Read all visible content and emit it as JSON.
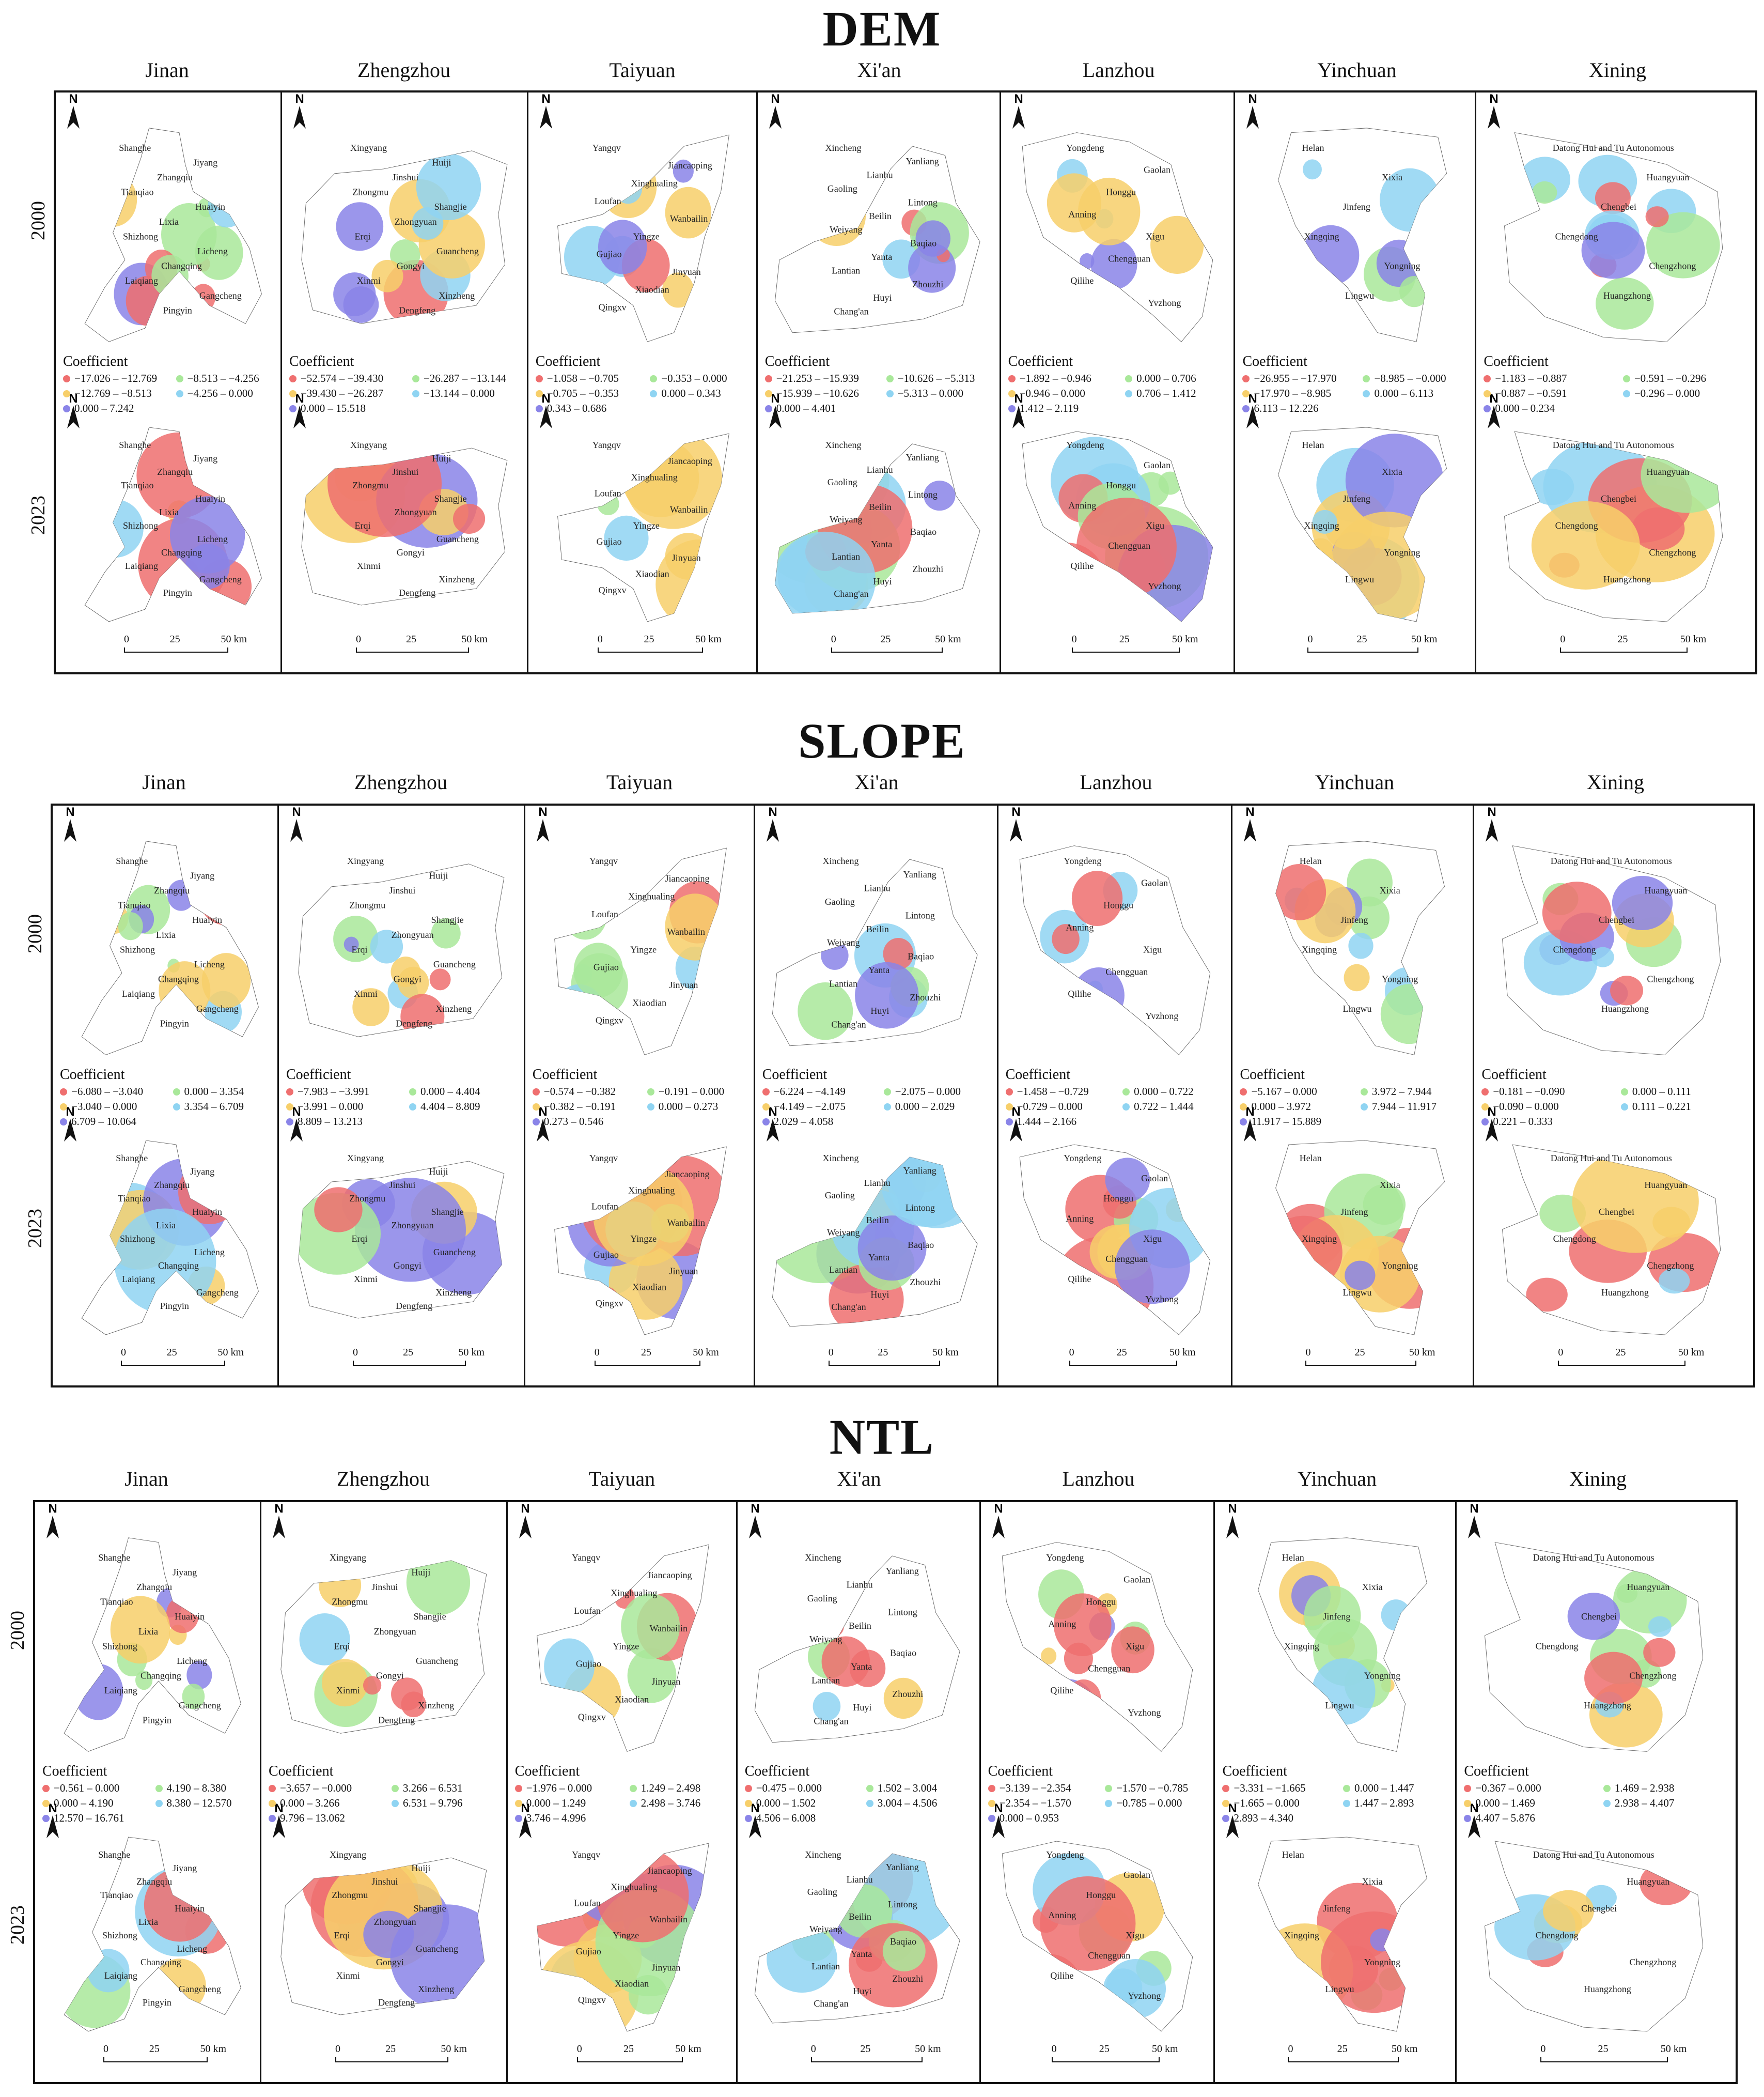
{
  "sections": [
    {
      "title": "DEM",
      "legends": [
        [
          "−17.026 – −12.769",
          "−12.769 – −8.513",
          "−8.513 – −4.256",
          "−4.256 – 0.000",
          "0.000 – 7.242"
        ],
        [
          "−52.574 – −39.430",
          "−39.430 – −26.287",
          "−26.287 – −13.144",
          "−13.144 – 0.000",
          "0.000 – 15.518"
        ],
        [
          "−1.058 – −0.705",
          "−0.705 – −0.353",
          "−0.353 – 0.000",
          "0.000 – 0.343",
          "0.343 – 0.686"
        ],
        [
          "−21.253 – −15.939",
          "−15.939 – −10.626",
          "−10.626 – −5.313",
          "−5.313 – 0.000",
          "0.000 – 4.401"
        ],
        [
          "−1.892 – −0.946",
          "−0.946 – 0.000",
          "0.000 – 0.706",
          "0.706 – 1.412",
          "1.412 – 2.119"
        ],
        [
          "−26.955 – −17.970",
          "−17.970 – −8.985",
          "−8.985 – −0.000",
          "0.000 – 6.113",
          "6.113 – 12.226"
        ],
        [
          "−1.183 – −0.887",
          "−0.887 – −0.591",
          "−0.591 – −0.296",
          "−0.296 – 0.000",
          "0.000 – 0.234"
        ]
      ]
    },
    {
      "title": "SLOPE",
      "legends": [
        [
          "−6.080 – −3.040",
          "−3.040 – 0.000",
          "0.000 – 3.354",
          "3.354 – 6.709",
          "6.709 – 10.064"
        ],
        [
          "−7.983 – −3.991",
          "−3.991 – 0.000",
          "0.000 – 4.404",
          "4.404 – 8.809",
          "8.809 – 13.213"
        ],
        [
          "−0.574 – −0.382",
          "−0.382 – −0.191",
          "−0.191 – 0.000",
          "0.000 – 0.273",
          "0.273 – 0.546"
        ],
        [
          "−6.224 – −4.149",
          "−4.149 – −2.075",
          "−2.075 – 0.000",
          "0.000 – 2.029",
          "2.029 – 4.058"
        ],
        [
          "−1.458 – −0.729",
          "−0.729 – 0.000",
          "0.000 – 0.722",
          "0.722 – 1.444",
          "1.444 – 2.166"
        ],
        [
          "−5.167 – 0.000",
          "0.000 – 3.972",
          "3.972 – 7.944",
          "7.944 – 11.917",
          "11.917 – 15.889"
        ],
        [
          "−0.181 – −0.090",
          "−0.090 – 0.000",
          "0.000 – 0.111",
          "0.111 – 0.221",
          "0.221 – 0.333"
        ]
      ]
    },
    {
      "title": "NTL",
      "legends": [
        [
          "−0.561 – 0.000",
          "0.000 – 4.190",
          "4.190 – 8.380",
          "8.380 – 12.570",
          "12.570 – 16.761"
        ],
        [
          "−3.657 – −0.000",
          "0.000 – 3.266",
          "3.266 – 6.531",
          "6.531 – 9.796",
          "9.796 – 13.062"
        ],
        [
          "−1.976 – 0.000",
          "0.000 – 1.249",
          "1.249 – 2.498",
          "2.498 – 3.746",
          "3.746 – 4.996"
        ],
        [
          "−0.475 – 0.000",
          "0.000 – 1.502",
          "1.502 – 3.004",
          "3.004 – 4.506",
          "4.506 – 6.008"
        ],
        [
          "−3.139 – −2.354",
          "−2.354 – −1.570",
          "−1.570 – −0.785",
          "−0.785 – 0.000",
          "0.000 – 0.953"
        ],
        [
          "−3.331 – −1.665",
          "−1.665 – 0.000",
          "0.000 – 1.447",
          "1.447 – 2.893",
          "2.893 – 4.340"
        ],
        [
          "−0.367 – 0.000",
          "0.000 – 1.469",
          "1.469 – 2.938",
          "2.938 – 4.407",
          "4.407 – 5.876"
        ]
      ]
    }
  ],
  "cities": [
    "Jinan",
    "Zhengzhou",
    "Taiyuan",
    "Xi'an",
    "Lanzhou",
    "Yinchuan",
    "Xining"
  ],
  "years": [
    "2000",
    "2023"
  ],
  "legend_title": "Coefficient",
  "legend_colors": [
    "#ef6f6f",
    "#f7cf6a",
    "#a9e89a",
    "#8fd4f2",
    "#8a84e8"
  ],
  "north_label": "N",
  "scale_labels": [
    "0",
    "25",
    "50 km"
  ],
  "districts": {
    "Jinan": [
      "Shanghe",
      "Jiyang",
      "Zhangqiu",
      "Tianqiao",
      "Huaiyin",
      "Lixia",
      "Shizhong",
      "Licheng",
      "Changqing",
      "Laiqiang",
      "Gangcheng",
      "Pingyin"
    ],
    "Zhengzhou": [
      "Xingyang",
      "Huiji",
      "Jinshui",
      "Zhongmu",
      "Shangjie",
      "Zhongyuan",
      "Erqi",
      "Guancheng",
      "Gongyi",
      "Xinmi",
      "Xinzheng",
      "Dengfeng"
    ],
    "Taiyuan": [
      "Yangqv",
      "Jiancaoping",
      "Xinghualing",
      "Loufan",
      "Wanbailin",
      "Yingze",
      "Gujiao",
      "Jinyuan",
      "Xiaodian",
      "Qingxv"
    ],
    "Xi'an": [
      "Xincheng",
      "Yanliang",
      "Lianhu",
      "Gaoling",
      "Lintong",
      "Beilin",
      "Weiyang",
      "Baqiao",
      "Yanta",
      "Lantian",
      "Zhouzhi",
      "Huyi",
      "Chang'an"
    ],
    "Lanzhou": [
      "Yongdeng",
      "Gaolan",
      "Honggu",
      "Anning",
      "Xigu",
      "Chengguan",
      "Qilihe",
      "Yvzhong"
    ],
    "Yinchuan": [
      "Helan",
      "Xixia",
      "Jinfeng",
      "Xingqing",
      "Yongning",
      "Lingwu"
    ],
    "Xining": [
      "Datong Hui and Tu Autonomous",
      "Huangyuan",
      "Chengbei",
      "Chengdong",
      "Chengzhong",
      "Huangzhong"
    ]
  }
}
